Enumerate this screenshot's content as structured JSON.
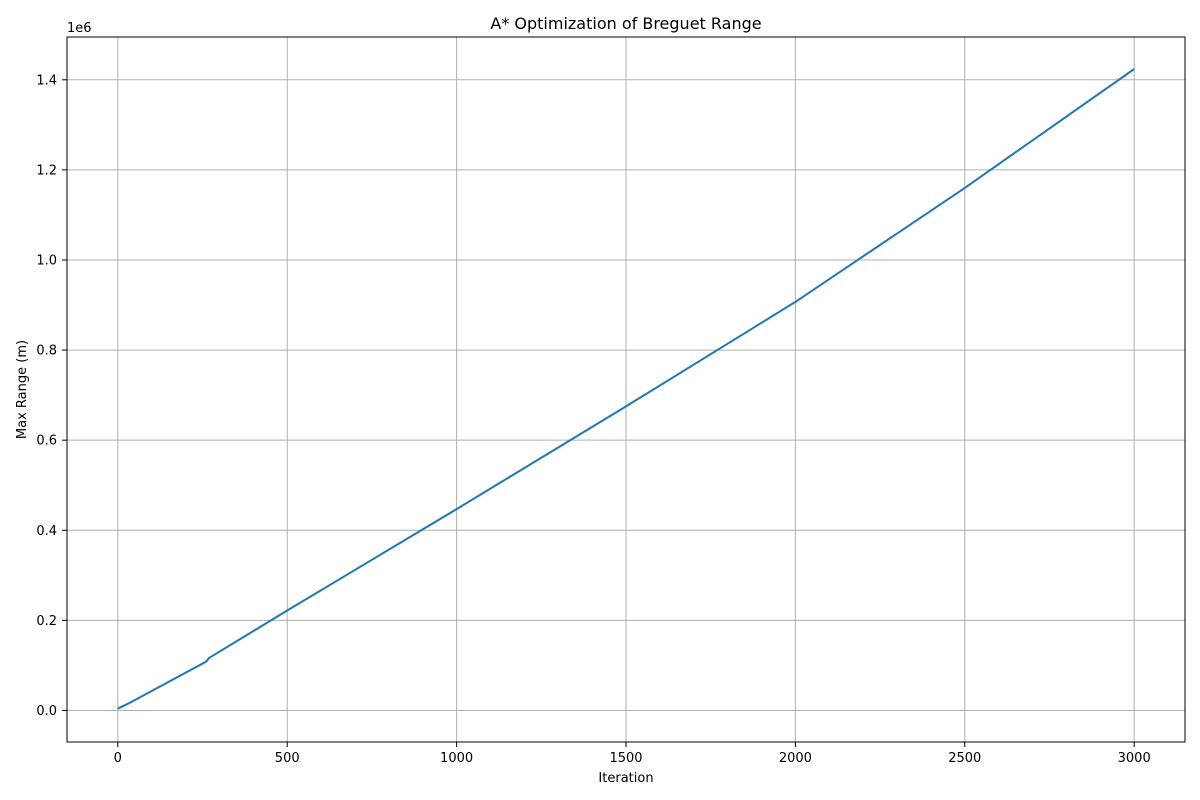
{
  "chart_data": {
    "type": "line",
    "title": "A* Optimization of Breguet Range",
    "xlabel": "Iteration",
    "ylabel": "Max Range (m)",
    "y_offset_label": "1e6",
    "xlim": [
      -150,
      3150
    ],
    "ylim": [
      -0.07,
      1.495
    ],
    "x_ticks": [
      0,
      500,
      1000,
      1500,
      2000,
      2500,
      3000
    ],
    "x_tick_labels": [
      "0",
      "500",
      "1000",
      "1500",
      "2000",
      "2500",
      "3000"
    ],
    "y_ticks": [
      0.0,
      0.2,
      0.4,
      0.6,
      0.8,
      1.0,
      1.2,
      1.4
    ],
    "y_tick_labels": [
      "0.0",
      "0.2",
      "0.4",
      "0.6",
      "0.8",
      "1.0",
      "1.2",
      "1.4"
    ],
    "grid": true,
    "series": [
      {
        "color": "#1f77b4",
        "x": [
          0,
          30,
          260,
          270,
          500,
          1000,
          1500,
          2000,
          2500,
          3000
        ],
        "y": [
          0.004,
          0.015,
          0.108,
          0.117,
          0.222,
          0.447,
          0.675,
          0.907,
          1.16,
          1.424
        ]
      }
    ]
  }
}
